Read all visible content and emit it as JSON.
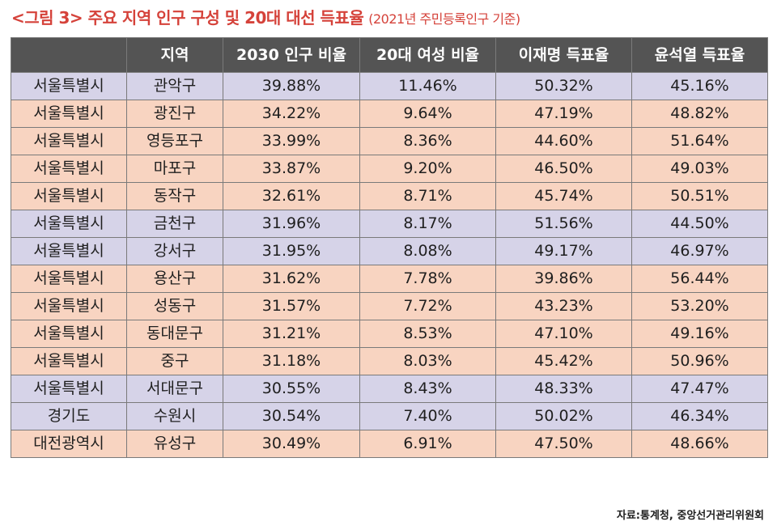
{
  "title": {
    "main": "<그림 3> 주요 지역 인구 구성 및 20대 대선 득표율",
    "sub": "(2021년 주민등록인구 기준)"
  },
  "table": {
    "headers": [
      "",
      "지역",
      "2030 인구 비율",
      "20대 여성 비율",
      "이재명 득표율",
      "윤석열 득표율"
    ],
    "rows": [
      {
        "shade": "a",
        "cells": [
          "서울특별시",
          "관악구",
          "39.88%",
          "11.46%",
          "50.32%",
          "45.16%"
        ]
      },
      {
        "shade": "b",
        "cells": [
          "서울특별시",
          "광진구",
          "34.22%",
          "9.64%",
          "47.19%",
          "48.82%"
        ]
      },
      {
        "shade": "b",
        "cells": [
          "서울특별시",
          "영등포구",
          "33.99%",
          "8.36%",
          "44.60%",
          "51.64%"
        ]
      },
      {
        "shade": "b",
        "cells": [
          "서울특별시",
          "마포구",
          "33.87%",
          "9.20%",
          "46.50%",
          "49.03%"
        ]
      },
      {
        "shade": "b",
        "cells": [
          "서울특별시",
          "동작구",
          "32.61%",
          "8.71%",
          "45.74%",
          "50.51%"
        ]
      },
      {
        "shade": "a",
        "cells": [
          "서울특별시",
          "금천구",
          "31.96%",
          "8.17%",
          "51.56%",
          "44.50%"
        ]
      },
      {
        "shade": "a",
        "cells": [
          "서울특별시",
          "강서구",
          "31.95%",
          "8.08%",
          "49.17%",
          "46.97%"
        ]
      },
      {
        "shade": "b",
        "cells": [
          "서울특별시",
          "용산구",
          "31.62%",
          "7.78%",
          "39.86%",
          "56.44%"
        ]
      },
      {
        "shade": "b",
        "cells": [
          "서울특별시",
          "성동구",
          "31.57%",
          "7.72%",
          "43.23%",
          "53.20%"
        ]
      },
      {
        "shade": "b",
        "cells": [
          "서울특별시",
          "동대문구",
          "31.21%",
          "8.53%",
          "47.10%",
          "49.16%"
        ]
      },
      {
        "shade": "b",
        "cells": [
          "서울특별시",
          "중구",
          "31.18%",
          "8.03%",
          "45.42%",
          "50.96%"
        ]
      },
      {
        "shade": "a",
        "cells": [
          "서울특별시",
          "서대문구",
          "30.55%",
          "8.43%",
          "48.33%",
          "47.47%"
        ]
      },
      {
        "shade": "a",
        "cells": [
          "경기도",
          "수원시",
          "30.54%",
          "7.40%",
          "50.02%",
          "46.34%"
        ]
      },
      {
        "shade": "b",
        "cells": [
          "대전광역시",
          "유성구",
          "30.49%",
          "6.91%",
          "47.50%",
          "48.66%"
        ]
      }
    ]
  },
  "source": "자료:통계청, 중앙선거관리위원회",
  "colors": {
    "title": "#d5423a",
    "header_bg": "#545454",
    "row_purple": "#d6d3e8",
    "row_orange": "#f8d4c1"
  }
}
